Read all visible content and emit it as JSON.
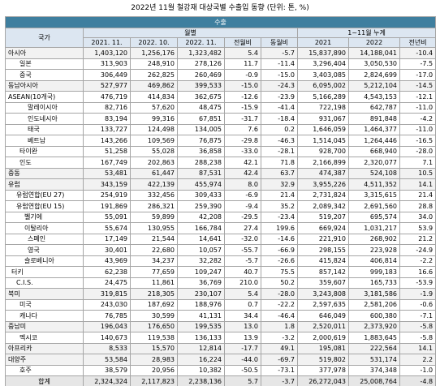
{
  "title": "2022년 11월 철강재 대상국별 수출입 동향 (단위: 톤, %)",
  "header": {
    "section": "수출",
    "country": "국가",
    "monthly": "월별",
    "cumulative": "1~11월 누계",
    "columns": [
      "2021. 11.",
      "2022. 10.",
      "2022. 11.",
      "전월비",
      "동월비",
      "2021",
      "2022",
      "전년비"
    ]
  },
  "table": {
    "rows": [
      [
        "아시아",
        "1,403,120",
        "1,256,176",
        "1,323,482",
        "5.4",
        "-5.7",
        "15,837,890",
        "14,188,041",
        "-10.4"
      ],
      [
        "일본",
        "313,903",
        "248,910",
        "278,126",
        "11.7",
        "-11.4",
        "3,296,404",
        "3,050,530",
        "-7.5"
      ],
      [
        "중국",
        "306,449",
        "262,825",
        "260,469",
        "-0.9",
        "-15.0",
        "3,403,085",
        "2,824,699",
        "-17.0"
      ],
      [
        "동남아시아",
        "527,977",
        "469,862",
        "399,533",
        "-15.0",
        "-24.3",
        "6,095,002",
        "5,212,104",
        "-14.5"
      ],
      [
        "ASEAN(10개국)",
        "476,719",
        "414,834",
        "362,675",
        "-12.6",
        "-23.9",
        "5,166,289",
        "4,543,153",
        "-12.1"
      ],
      [
        "말레이시아",
        "82,716",
        "57,620",
        "48,475",
        "-15.9",
        "-41.4",
        "722,198",
        "642,787",
        "-11.0"
      ],
      [
        "인도네시아",
        "83,194",
        "99,316",
        "67,851",
        "-31.7",
        "-18.4",
        "931,067",
        "891,848",
        "-4.2"
      ],
      [
        "태국",
        "133,727",
        "124,498",
        "134,005",
        "7.6",
        "0.2",
        "1,646,059",
        "1,464,377",
        "-11.0"
      ],
      [
        "베트남",
        "143,266",
        "109,569",
        "76,875",
        "-29.8",
        "-46.3",
        "1,514,045",
        "1,264,446",
        "-16.5"
      ],
      [
        "타이완",
        "51,258",
        "55,028",
        "36,858",
        "-33.0",
        "-28.1",
        "928,700",
        "668,940",
        "-28.0"
      ],
      [
        "인도",
        "167,749",
        "202,863",
        "288,238",
        "42.1",
        "71.8",
        "2,166,899",
        "2,320,077",
        "7.1"
      ],
      [
        "중동",
        "53,481",
        "61,447",
        "87,531",
        "42.4",
        "63.7",
        "474,387",
        "524,108",
        "10.5"
      ],
      [
        "유럽",
        "343,159",
        "422,139",
        "455,974",
        "8.0",
        "32.9",
        "3,955,226",
        "4,511,352",
        "14.1"
      ],
      [
        "유럽연합(EU 27)",
        "254,919",
        "332,456",
        "309,433",
        "-6.9",
        "21.4",
        "2,731,824",
        "3,315,615",
        "21.4"
      ],
      [
        "유럽연합(EU 15)",
        "191,869",
        "286,321",
        "259,390",
        "-9.4",
        "35.2",
        "2,089,342",
        "2,691,560",
        "28.8"
      ],
      [
        "벨기에",
        "55,091",
        "59,899",
        "42,208",
        "-29.5",
        "-23.4",
        "519,207",
        "695,574",
        "34.0"
      ],
      [
        "이탈리아",
        "55,674",
        "130,955",
        "166,784",
        "27.4",
        "199.6",
        "669,924",
        "1,031,217",
        "53.9"
      ],
      [
        "스페인",
        "17,149",
        "21,544",
        "14,641",
        "-32.0",
        "-14.6",
        "221,910",
        "268,902",
        "21.2"
      ],
      [
        "영국",
        "30,401",
        "22,680",
        "10,057",
        "-55.7",
        "-66.9",
        "298,155",
        "223,928",
        "-24.9"
      ],
      [
        "슬로베니아",
        "43,969",
        "34,237",
        "32,282",
        "-5.7",
        "-26.6",
        "415,824",
        "406,814",
        "-2.2"
      ],
      [
        "터키",
        "62,238",
        "77,659",
        "109,247",
        "40.7",
        "75.5",
        "857,142",
        "999,183",
        "16.6"
      ],
      [
        "C.I.S.",
        "24,475",
        "11,861",
        "36,769",
        "210.0",
        "50.2",
        "359,607",
        "165,733",
        "-53.9"
      ],
      [
        "북미",
        "319,815",
        "218,305",
        "230,107",
        "5.4",
        "-28.0",
        "3,243,808",
        "3,181,586",
        "-1.9"
      ],
      [
        "미국",
        "243,030",
        "187,692",
        "188,976",
        "0.7",
        "-22.2",
        "2,597,635",
        "2,581,206",
        "-0.6"
      ],
      [
        "캐나다",
        "76,785",
        "30,599",
        "41,131",
        "34.4",
        "-46.4",
        "646,049",
        "600,380",
        "-7.1"
      ],
      [
        "중남미",
        "196,043",
        "176,650",
        "199,535",
        "13.0",
        "1.8",
        "2,520,011",
        "2,373,920",
        "-5.8"
      ],
      [
        "멕시코",
        "140,673",
        "119,538",
        "136,133",
        "13.9",
        "-3.2",
        "2,000,619",
        "1,883,645",
        "-5.8"
      ],
      [
        "아프리카",
        "8,533",
        "15,570",
        "12,814",
        "-17.7",
        "49.1",
        "195,081",
        "222,564",
        "14.1"
      ],
      [
        "대양주",
        "53,584",
        "28,983",
        "16,224",
        "-44.0",
        "-69.7",
        "519,802",
        "531,174",
        "2.2"
      ],
      [
        "호주",
        "38,579",
        "20,956",
        "10,382",
        "-50.5",
        "-73.1",
        "377,978",
        "374,348",
        "-1.0"
      ],
      [
        "합계",
        "2,324,324",
        "2,117,823",
        "2,238,136",
        "5.7",
        "-3.7",
        "26,272,043",
        "25,008,764",
        "-4.8"
      ]
    ]
  }
}
